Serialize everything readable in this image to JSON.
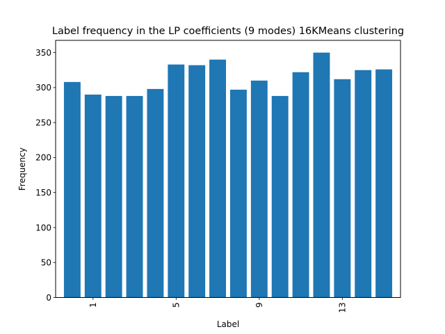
{
  "chart_data": {
    "type": "bar",
    "title": "Label frequency in the LP coefficients (9 modes) 16KMeans clustering",
    "xlabel": "Label",
    "ylabel": "Frequency",
    "x": [
      0,
      1,
      2,
      3,
      4,
      5,
      6,
      7,
      8,
      9,
      10,
      11,
      12,
      13,
      14,
      15
    ],
    "values": [
      308,
      290,
      288,
      288,
      298,
      333,
      332,
      340,
      297,
      310,
      288,
      322,
      350,
      312,
      325,
      326
    ],
    "xticks": [
      1,
      5,
      9,
      13
    ],
    "xtick_labels": [
      "1",
      "5",
      "9",
      "13"
    ],
    "xtick_rotation": 90,
    "yticks": [
      0,
      50,
      100,
      150,
      200,
      250,
      300,
      350
    ],
    "ytick_labels": [
      "0",
      "50",
      "100",
      "150",
      "200",
      "250",
      "300",
      "350"
    ],
    "xlim": [
      -0.8,
      15.8
    ],
    "ylim": [
      0,
      367.5
    ],
    "bar_width": 0.8,
    "bar_color": "#1f77b4",
    "grid": false
  }
}
